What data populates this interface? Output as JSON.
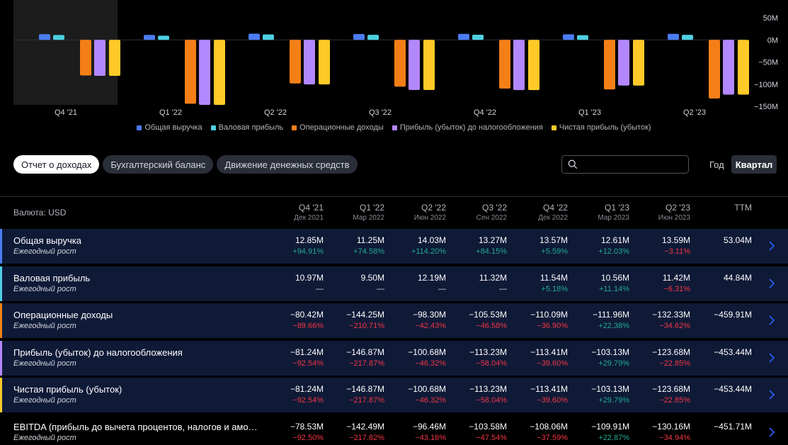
{
  "chart_data": {
    "type": "bar",
    "categories": [
      "Q4 '21",
      "Q1 '22",
      "Q2 '22",
      "Q3 '22",
      "Q4 '22",
      "Q1 '23",
      "Q2 '23"
    ],
    "y_ticks": [
      "50M",
      "0M",
      "−50M",
      "−100M",
      "−150M"
    ],
    "y_tick_values": [
      50,
      0,
      -50,
      -100,
      -150
    ],
    "ylim": [
      -150,
      50
    ],
    "series": [
      {
        "name": "Общая выручка",
        "color": "#4c7cf3",
        "values": [
          12.85,
          11.25,
          14.03,
          13.27,
          13.57,
          12.61,
          13.59
        ]
      },
      {
        "name": "Валовая прибыль",
        "color": "#4dd0e1",
        "values": [
          10.97,
          9.5,
          12.19,
          11.32,
          11.54,
          10.56,
          11.42
        ]
      },
      {
        "name": "Операционные доходы",
        "color": "#f57f17",
        "values": [
          -80.42,
          -144.25,
          -98.3,
          -105.53,
          -110.09,
          -111.96,
          -132.33
        ]
      },
      {
        "name": "Прибыль (убыток) до налогообложения",
        "color": "#b388ff",
        "values": [
          -81.24,
          -146.87,
          -100.68,
          -113.23,
          -113.41,
          -103.13,
          -123.68
        ]
      },
      {
        "name": "Чистая прибыль (убыток)",
        "color": "#ffca28",
        "values": [
          -81.24,
          -146.87,
          -100.68,
          -113.23,
          -113.41,
          -103.13,
          -123.68
        ]
      }
    ]
  },
  "tabs": [
    "Отчет о доходах",
    "Бухгалтерский баланс",
    "Движение денежных средств"
  ],
  "period": {
    "year": "Год",
    "quarter": "Квартал"
  },
  "table": {
    "currency": "Валюта: USD",
    "columns": [
      {
        "q": "Q4 '21",
        "d": "Дек 2021"
      },
      {
        "q": "Q1 '22",
        "d": "Мар 2022"
      },
      {
        "q": "Q2 '22",
        "d": "Июн 2022"
      },
      {
        "q": "Q3 '22",
        "d": "Сен 2022"
      },
      {
        "q": "Q4 '22",
        "d": "Дек 2022"
      },
      {
        "q": "Q1 '23",
        "d": "Мар 2023"
      },
      {
        "q": "Q2 '23",
        "d": "Июн 2023"
      },
      {
        "q": "TTM",
        "d": ""
      }
    ],
    "rows": [
      {
        "name": "Общая выручка",
        "sub": "Ежегодный рост",
        "color": "#4c7cf3",
        "values": [
          "12.85M",
          "11.25M",
          "14.03M",
          "13.27M",
          "13.57M",
          "12.61M",
          "13.59M",
          "53.04M"
        ],
        "growth": [
          "+94.91%",
          "+74.58%",
          "+114.20%",
          "+84.15%",
          "+5.59%",
          "+12.03%",
          "−3.11%",
          ""
        ]
      },
      {
        "name": "Валовая прибыль",
        "sub": "Ежегодный рост",
        "color": "#4dd0e1",
        "values": [
          "10.97M",
          "9.50M",
          "12.19M",
          "11.32M",
          "11.54M",
          "10.56M",
          "11.42M",
          "44.84M"
        ],
        "growth": [
          "—",
          "—",
          "—",
          "—",
          "+5.18%",
          "+11.14%",
          "−6.31%",
          ""
        ]
      },
      {
        "name": "Операционные доходы",
        "sub": "Ежегодный рост",
        "color": "#f57f17",
        "values": [
          "−80.42M",
          "−144.25M",
          "−98.30M",
          "−105.53M",
          "−110.09M",
          "−111.96M",
          "−132.33M",
          "−459.91M"
        ],
        "growth": [
          "−89.66%",
          "−210.71%",
          "−42.43%",
          "−46.58%",
          "−36.90%",
          "+22.38%",
          "−34.62%",
          ""
        ]
      },
      {
        "name": "Прибыль (убыток) до налогообложения",
        "sub": "Ежегодный рост",
        "color": "#b388ff",
        "values": [
          "−81.24M",
          "−146.87M",
          "−100.68M",
          "−113.23M",
          "−113.41M",
          "−103.13M",
          "−123.68M",
          "−453.44M"
        ],
        "growth": [
          "−92.54%",
          "−217.87%",
          "−46.32%",
          "−58.04%",
          "−39.60%",
          "+29.79%",
          "−22.85%",
          ""
        ]
      },
      {
        "name": "Чистая прибыль (убыток)",
        "sub": "Ежегодный рост",
        "color": "#ffca28",
        "values": [
          "−81.24M",
          "−146.87M",
          "−100.68M",
          "−113.23M",
          "−113.41M",
          "−103.13M",
          "−123.68M",
          "−453.44M"
        ],
        "growth": [
          "−92.54%",
          "−217.87%",
          "−46.32%",
          "−58.04%",
          "−39.60%",
          "+29.79%",
          "−22.85%",
          ""
        ]
      },
      {
        "name": "EBITDA (прибыль до вычета процентов, налогов и аморт…",
        "sub": "Ежегодный рост",
        "color": "",
        "values": [
          "−78.53M",
          "−142.49M",
          "−96.46M",
          "−103.58M",
          "−108.06M",
          "−109.91M",
          "−130.16M",
          "−451.71M"
        ],
        "growth": [
          "−92.50%",
          "−217.82%",
          "−43.16%",
          "−47.54%",
          "−37.59%",
          "+22.87%",
          "−34.94%",
          ""
        ]
      }
    ]
  }
}
